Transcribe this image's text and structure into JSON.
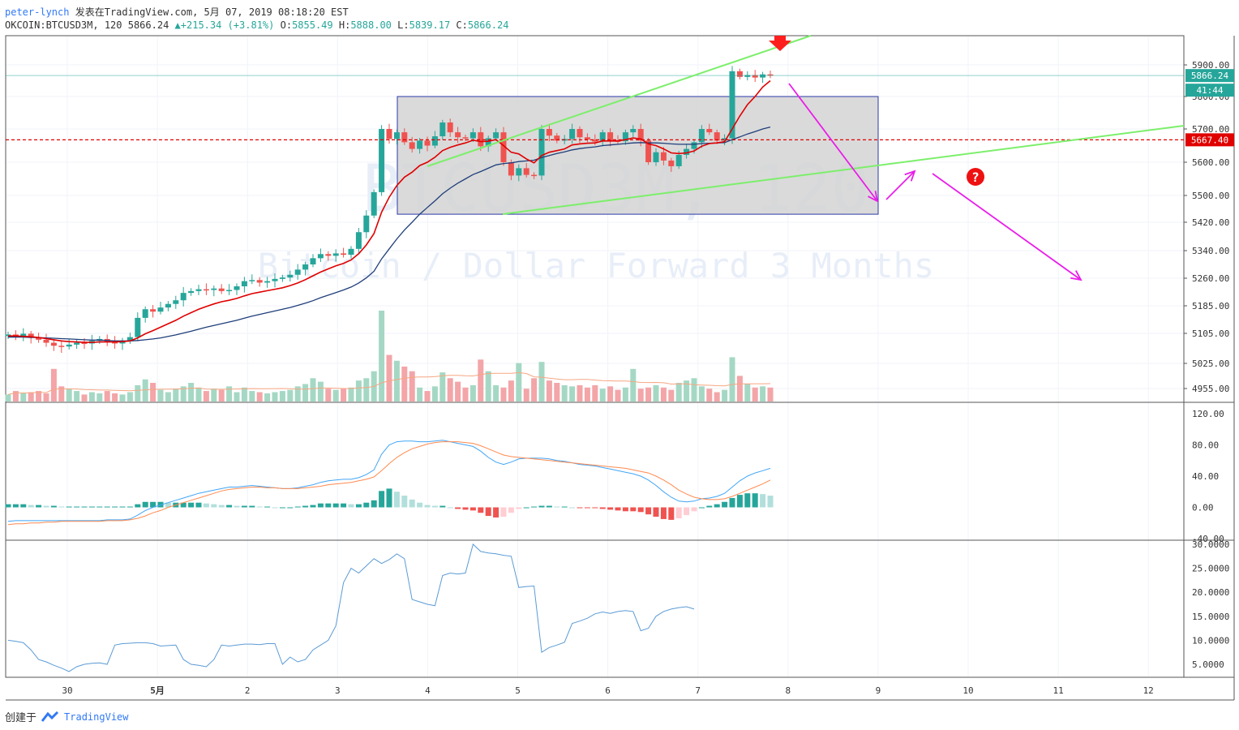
{
  "header": {
    "author": "peter-lynch",
    "published": "发表在TradingView.com, 5月 07, 2019 08:18:20 EST",
    "symbol": "OKCOIN:BTCUSD3M, 120",
    "last": "5866.24",
    "change": "+215.34 (+3.81%)",
    "o_label": "O:",
    "o": "5855.49",
    "h_label": "H:",
    "h": "5888.00",
    "l_label": "L:",
    "l": "5839.17",
    "c_label": "C:",
    "c": "5866.24"
  },
  "watermark": {
    "title": "BTCUSD3M, 120",
    "subtitle": "Bitcoin / Dollar Forward 3 Months"
  },
  "footer": {
    "created": "创建于",
    "brand": "TradingView"
  },
  "colors": {
    "up": "#26a69a",
    "down": "#ef5350",
    "ma_fast": "#e00000",
    "ma_slow": "#1f3e7a",
    "trend": "#7cef6b",
    "arrow": "#e91ee9",
    "box": "#d3d3d3",
    "box_border": "#2a3aa8"
  },
  "chart_data": [
    {
      "type": "candlestick",
      "title": "OKCOIN:BTCUSD3M, 120",
      "x_ticks": [
        "30",
        "5月",
        "2",
        "3",
        "4",
        "5",
        "6",
        "7",
        "8",
        "9",
        "10",
        "11",
        "12"
      ],
      "price_ticks": [
        "5900.00",
        "5800.00",
        "5700.00",
        "5600.00",
        "5500.00",
        "5420.00",
        "5340.00",
        "5260.00",
        "5185.00",
        "5105.00",
        "5025.00",
        "4955.00"
      ],
      "price_tick_values": [
        5900,
        5800,
        5700,
        5600,
        5500,
        5420,
        5340,
        5260,
        5185,
        5105,
        5025,
        4955
      ],
      "last_price_label": "5866.24",
      "countdown_label": "41:44",
      "level_label": "5667.40",
      "level_value": 5667.4,
      "candles_close": [
        5102,
        5098,
        5104,
        5095,
        5088,
        5080,
        5072,
        5070,
        5075,
        5080,
        5078,
        5085,
        5090,
        5082,
        5078,
        5085,
        5095,
        5150,
        5175,
        5168,
        5180,
        5190,
        5200,
        5220,
        5225,
        5230,
        5228,
        5232,
        5225,
        5228,
        5238,
        5252,
        5255,
        5248,
        5252,
        5258,
        5262,
        5270,
        5285,
        5300,
        5318,
        5330,
        5325,
        5332,
        5328,
        5345,
        5392,
        5440,
        5510,
        5700,
        5670,
        5690,
        5660,
        5640,
        5665,
        5650,
        5678,
        5720,
        5690,
        5675,
        5672,
        5690,
        5648,
        5672,
        5690,
        5600,
        5560,
        5582,
        5562,
        5560,
        5700,
        5680,
        5665,
        5670,
        5700,
        5675,
        5668,
        5662,
        5690,
        5665,
        5663,
        5690,
        5700,
        5665,
        5600,
        5630,
        5605,
        5588,
        5622,
        5640,
        5660,
        5700,
        5690,
        5665,
        5672,
        5880,
        5862,
        5868,
        5860,
        5870,
        5866
      ],
      "volume_total": [
        6,
        9,
        7,
        8,
        9,
        7,
        28,
        13,
        11,
        9,
        6,
        8,
        7,
        9,
        7,
        6,
        8,
        14,
        19,
        16,
        10,
        8,
        11,
        13,
        16,
        12,
        9,
        11,
        10,
        13,
        8,
        12,
        9,
        8,
        7,
        8,
        9,
        10,
        13,
        15,
        20,
        17,
        11,
        10,
        11,
        12,
        18,
        20,
        26,
        78,
        40,
        35,
        30,
        26,
        12,
        9,
        13,
        25,
        20,
        17,
        12,
        14,
        36,
        26,
        14,
        12,
        18,
        33,
        11,
        20,
        34,
        18,
        16,
        14,
        13,
        14,
        12,
        14,
        11,
        13,
        10,
        12,
        28,
        11,
        12,
        14,
        12,
        10,
        16,
        18,
        20,
        13,
        11,
        8,
        10,
        38,
        22,
        15,
        12,
        13,
        12
      ],
      "ma_fast": [
        5098,
        5098,
        5097,
        5096,
        5094,
        5091,
        5088,
        5085,
        5083,
        5082,
        5081,
        5081,
        5082,
        5082,
        5082,
        5083,
        5085,
        5093,
        5104,
        5113,
        5123,
        5133,
        5143,
        5155,
        5165,
        5175,
        5183,
        5190,
        5196,
        5200,
        5205,
        5212,
        5218,
        5222,
        5226,
        5230,
        5234,
        5240,
        5247,
        5256,
        5267,
        5278,
        5287,
        5296,
        5303,
        5313,
        5331,
        5356,
        5388,
        5450,
        5495,
        5530,
        5555,
        5570,
        5590,
        5600,
        5615,
        5635,
        5645,
        5652,
        5658,
        5666,
        5662,
        5663,
        5668,
        5650,
        5630,
        5625,
        5610,
        5598,
        5620,
        5630,
        5635,
        5640,
        5652,
        5655,
        5657,
        5658,
        5664,
        5664,
        5664,
        5668,
        5673,
        5670,
        5655,
        5650,
        5640,
        5628,
        5626,
        5628,
        5634,
        5648,
        5656,
        5658,
        5662,
        5700,
        5740,
        5775,
        5800,
        5830,
        5850
      ],
      "ma_slow": [
        5095,
        5095,
        5095,
        5094,
        5094,
        5093,
        5092,
        5091,
        5090,
        5089,
        5088,
        5087,
        5087,
        5086,
        5085,
        5085,
        5085,
        5086,
        5088,
        5090,
        5093,
        5097,
        5101,
        5106,
        5111,
        5117,
        5123,
        5128,
        5133,
        5138,
        5143,
        5149,
        5155,
        5160,
        5165,
        5170,
        5175,
        5180,
        5186,
        5192,
        5199,
        5207,
        5214,
        5221,
        5228,
        5236,
        5247,
        5261,
        5280,
        5316,
        5345,
        5373,
        5398,
        5420,
        5444,
        5464,
        5484,
        5505,
        5522,
        5537,
        5550,
        5563,
        5572,
        5582,
        5592,
        5596,
        5598,
        5602,
        5604,
        5606,
        5614,
        5620,
        5626,
        5631,
        5637,
        5641,
        5644,
        5646,
        5650,
        5652,
        5654,
        5656,
        5658,
        5659,
        5658,
        5658,
        5657,
        5655,
        5654,
        5654,
        5654,
        5656,
        5657,
        5658,
        5659,
        5668,
        5676,
        5685,
        5692,
        5700,
        5706
      ]
    },
    {
      "type": "line",
      "title": "MACD",
      "y_ticks": [
        "120.00",
        "80.00",
        "40.00",
        "0.00",
        "-40.00"
      ],
      "y_tick_values": [
        120,
        80,
        40,
        0,
        -40
      ],
      "ylim": [
        -40,
        120
      ],
      "macd_line": [
        -18,
        -17,
        -17,
        -17,
        -17,
        -17,
        -17,
        -17,
        -17,
        -17,
        -17,
        -17,
        -17,
        -16,
        -16,
        -16,
        -15,
        -10,
        -4,
        0,
        3,
        6,
        9,
        12,
        15,
        18,
        20,
        22,
        24,
        26,
        26,
        27,
        28,
        27,
        26,
        25,
        24,
        24,
        25,
        27,
        29,
        32,
        34,
        35,
        36,
        36,
        38,
        42,
        48,
        68,
        80,
        84,
        85,
        85,
        84,
        84,
        85,
        86,
        84,
        82,
        80,
        78,
        72,
        64,
        58,
        55,
        58,
        62,
        63,
        63,
        63,
        62,
        60,
        59,
        57,
        55,
        54,
        53,
        51,
        49,
        47,
        45,
        43,
        40,
        35,
        28,
        20,
        13,
        8,
        7,
        8,
        11,
        12,
        14,
        18,
        26,
        34,
        40,
        44,
        47,
        50
      ],
      "signal_line": [
        -22,
        -21,
        -21,
        -20,
        -20,
        -19,
        -19,
        -18,
        -18,
        -18,
        -18,
        -18,
        -18,
        -17,
        -17,
        -17,
        -16,
        -14,
        -11,
        -7,
        -4,
        0,
        3,
        6,
        9,
        12,
        15,
        18,
        21,
        23,
        24,
        25,
        26,
        26,
        25,
        25,
        24,
        24,
        24,
        25,
        26,
        27,
        29,
        30,
        31,
        32,
        34,
        36,
        39,
        47,
        56,
        64,
        70,
        75,
        78,
        81,
        83,
        84,
        84,
        84,
        83,
        82,
        79,
        75,
        71,
        67,
        65,
        64,
        63,
        62,
        61,
        60,
        59,
        58,
        57,
        56,
        55,
        54,
        53,
        52,
        51,
        50,
        48,
        46,
        44,
        40,
        35,
        29,
        22,
        17,
        13,
        11,
        10,
        10,
        11,
        14,
        18,
        22,
        26,
        30,
        35
      ],
      "histogram": [
        4,
        4,
        4,
        3,
        3,
        2,
        2,
        1,
        1,
        1,
        1,
        1,
        1,
        1,
        1,
        1,
        1,
        4,
        7,
        7,
        7,
        6,
        6,
        6,
        6,
        6,
        5,
        4,
        3,
        3,
        2,
        2,
        2,
        1,
        1,
        0,
        0,
        0,
        1,
        2,
        3,
        5,
        5,
        5,
        5,
        4,
        4,
        6,
        9,
        21,
        24,
        20,
        15,
        10,
        6,
        3,
        2,
        2,
        0,
        -2,
        -3,
        -4,
        -7,
        -11,
        -13,
        -12,
        -7,
        -2,
        0,
        1,
        2,
        2,
        1,
        1,
        0,
        -1,
        -1,
        -1,
        -2,
        -3,
        -4,
        -5,
        -5,
        -6,
        -9,
        -12,
        -15,
        -16,
        -14,
        -10,
        -5,
        0,
        2,
        4,
        7,
        12,
        16,
        18,
        18,
        17,
        15
      ]
    },
    {
      "type": "line",
      "title": "Volatility",
      "y_ticks": [
        "30.0000",
        "25.0000",
        "20.0000",
        "15.0000",
        "10.0000",
        "5.0000"
      ],
      "y_tick_values": [
        30,
        25,
        20,
        15,
        10,
        5
      ],
      "ylim": [
        2,
        30.5
      ],
      "values": [
        10,
        9.8,
        9.5,
        8,
        6,
        5.5,
        4.8,
        4.2,
        3.5,
        4.5,
        5,
        5.2,
        5.3,
        5,
        9,
        9.3,
        9.4,
        9.5,
        9.5,
        9.3,
        8.8,
        8.9,
        9,
        6,
        5,
        4.8,
        4.5,
        6,
        9,
        8.8,
        9,
        9.2,
        9.2,
        9.1,
        9.3,
        9.3,
        5,
        6.5,
        5.5,
        6,
        8,
        9,
        10,
        13,
        22,
        25,
        24,
        25.5,
        27,
        26,
        26.8,
        28,
        27,
        18.5,
        18,
        17.5,
        17.2,
        23.5,
        24,
        23.8,
        24,
        30,
        28.5,
        28.2,
        28,
        27.7,
        27.5,
        21,
        21.2,
        21.3,
        7.5,
        8.5,
        9,
        9.6,
        13.5,
        14,
        14.6,
        15.5,
        15.9,
        15.6,
        16,
        16.2,
        16,
        12,
        12.5,
        15,
        16,
        16.5,
        16.8,
        17,
        16.5
      ]
    }
  ],
  "drawings": {
    "box_price_range": [
      5444,
      5800
    ],
    "trend_upper_start": {
      "x": "4",
      "price": 5590
    },
    "trend_lower_points": [
      {
        "x": "4.8",
        "price": 5444
      },
      {
        "x": "12.4",
        "price": 5710
      }
    ]
  }
}
